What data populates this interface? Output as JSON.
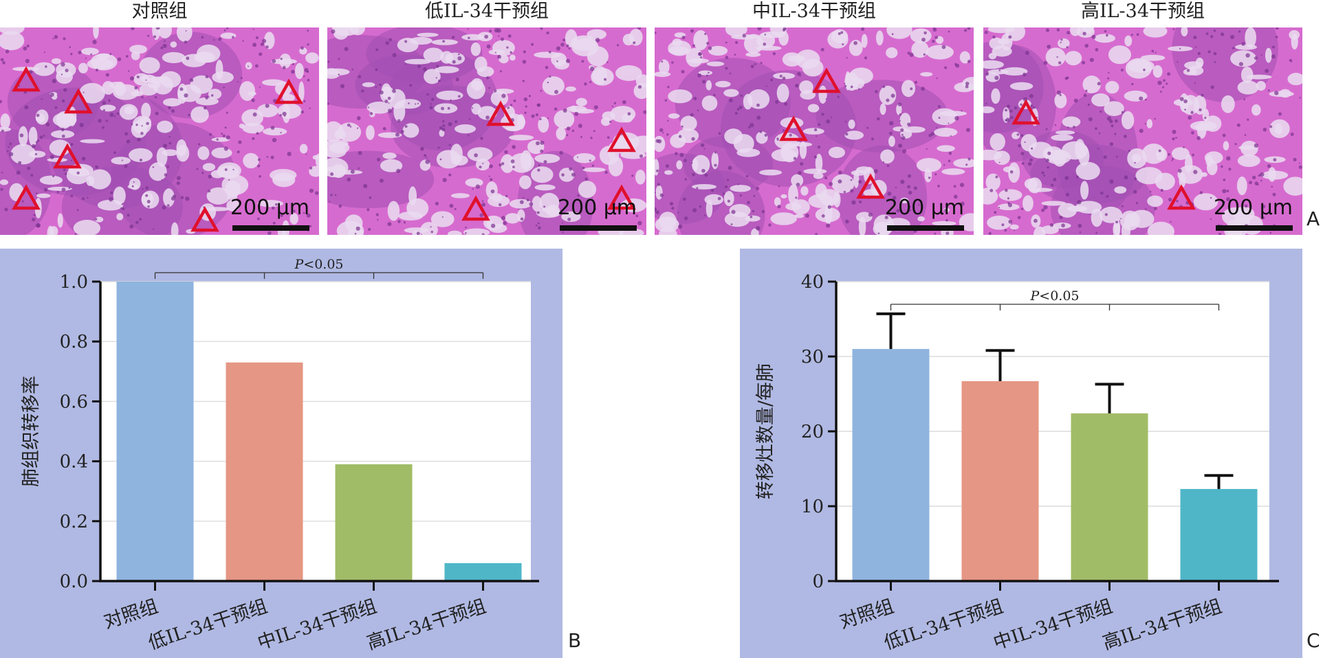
{
  "panel_a": {
    "titles": [
      "对照组",
      "低IL-34干预组",
      "中IL-34干预组",
      "高IL-34干预组"
    ],
    "scale_label": "200 μm",
    "letter": "A"
  },
  "panel_b": {
    "letter": "B"
  },
  "panel_c": {
    "letter": "C"
  },
  "colors": {
    "chart_background": "#b0b9e3",
    "tissue_pink": "#d66bcf",
    "tissue_purple": "#a24fb2",
    "space": "#e9d9ef",
    "marker_red": "#e0102c",
    "bar_blue": "#8fb4de",
    "bar_salmon": "#e59684",
    "bar_green": "#a1bc67",
    "bar_teal": "#4fb6c8"
  },
  "chart_data": [
    {
      "type": "bar",
      "categories": [
        "对照组",
        "低IL-34干预组",
        "中IL-34干预组",
        "高IL-34干预组"
      ],
      "values": [
        1.0,
        0.73,
        0.39,
        0.06
      ],
      "ylabel": "肺组织转移率",
      "ylim": [
        0,
        1.0
      ],
      "yticks": [
        "0.0",
        "0.2",
        "0.4",
        "0.6",
        "0.8",
        "1.0"
      ],
      "grid": true,
      "annotation": {
        "italic": "P",
        "text": "<0.05"
      }
    },
    {
      "type": "bar",
      "categories": [
        "对照组",
        "低IL-34干预组",
        "中IL-34干预组",
        "高IL-34干预组"
      ],
      "values": [
        31.0,
        26.7,
        22.4,
        12.3
      ],
      "errors": [
        4.7,
        4.1,
        3.9,
        1.8
      ],
      "ylabel": "转移灶数量/每肺",
      "ylim": [
        0,
        40
      ],
      "yticks": [
        "0",
        "10",
        "20",
        "30",
        "40"
      ],
      "grid": true,
      "annotation": {
        "italic": "P",
        "text": "<0.05"
      }
    }
  ]
}
